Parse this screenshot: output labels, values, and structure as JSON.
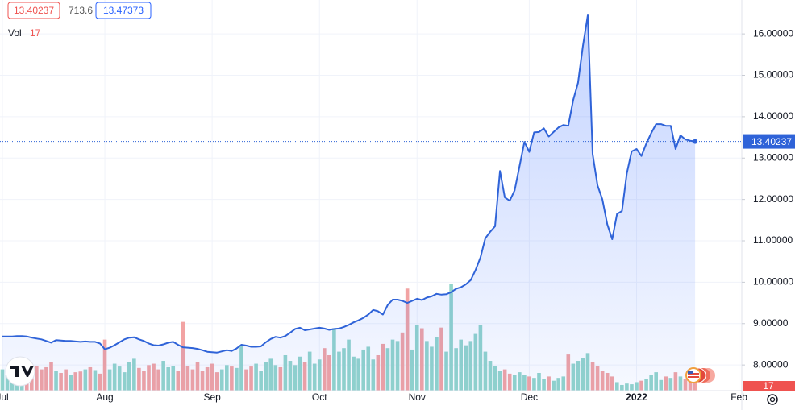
{
  "chart_data": {
    "type": "line",
    "legend": {
      "indicator_values": [
        713.6,
        13.47373
      ],
      "volume_label": "Vol"
    },
    "categories": [
      "Jul",
      null,
      null,
      null,
      null,
      null,
      null,
      null,
      null,
      null,
      null,
      null,
      null,
      null,
      null,
      null,
      null,
      null,
      null,
      null,
      null,
      "Aug",
      null,
      null,
      null,
      null,
      null,
      null,
      null,
      null,
      null,
      null,
      null,
      null,
      null,
      null,
      null,
      null,
      null,
      null,
      null,
      null,
      null,
      "Sep",
      null,
      null,
      null,
      null,
      null,
      null,
      null,
      null,
      null,
      null,
      null,
      null,
      null,
      null,
      null,
      null,
      null,
      null,
      null,
      null,
      null,
      "Oct",
      null,
      null,
      null,
      null,
      null,
      null,
      null,
      null,
      null,
      null,
      null,
      null,
      null,
      null,
      null,
      null,
      null,
      null,
      null,
      "Nov",
      null,
      null,
      null,
      null,
      null,
      null,
      null,
      null,
      null,
      null,
      null,
      null,
      null,
      null,
      null,
      null,
      null,
      null,
      null,
      null,
      null,
      null,
      "Dec",
      null,
      null,
      null,
      null,
      null,
      null,
      null,
      null,
      null,
      null,
      null,
      null,
      null,
      null,
      null,
      null,
      null,
      null,
      null,
      null,
      null,
      "2022",
      null,
      null,
      null,
      null,
      null,
      null,
      null,
      null,
      null,
      null,
      null,
      null,
      null,
      null,
      null,
      null,
      null,
      null,
      null,
      null,
      "Feb"
    ],
    "series": [
      {
        "color": "#2f63d8",
        "values": [
          8.69,
          8.69,
          8.69,
          8.7,
          8.7,
          8.69,
          8.66,
          8.64,
          8.62,
          8.58,
          8.54,
          8.6,
          8.59,
          8.58,
          8.58,
          8.57,
          8.56,
          8.57,
          8.56,
          8.56,
          8.52,
          8.38,
          8.42,
          8.48,
          8.55,
          8.62,
          8.66,
          8.67,
          8.62,
          8.58,
          8.52,
          8.48,
          8.47,
          8.5,
          8.54,
          8.56,
          8.49,
          8.43,
          8.42,
          8.41,
          8.39,
          8.36,
          8.32,
          8.31,
          8.3,
          8.33,
          8.36,
          8.34,
          8.4,
          8.49,
          8.47,
          8.44,
          8.44,
          8.45,
          8.55,
          8.63,
          8.68,
          8.66,
          8.7,
          8.78,
          8.87,
          8.9,
          8.84,
          8.86,
          8.88,
          8.9,
          8.88,
          8.85,
          8.87,
          8.88,
          8.92,
          8.97,
          9.03,
          9.08,
          9.14,
          9.22,
          9.33,
          9.3,
          9.22,
          9.45,
          9.58,
          9.58,
          9.55,
          9.5,
          9.55,
          9.6,
          9.57,
          9.63,
          9.66,
          9.72,
          9.7,
          9.71,
          9.76,
          9.84,
          9.88,
          9.95,
          10.05,
          10.3,
          10.6,
          11.06,
          11.22,
          11.35,
          12.69,
          12.05,
          11.97,
          12.22,
          12.8,
          13.39,
          13.15,
          13.62,
          13.63,
          13.72,
          13.52,
          13.63,
          13.74,
          13.8,
          13.78,
          14.4,
          14.82,
          15.7,
          16.45,
          13.1,
          12.34,
          12.0,
          11.4,
          11.04,
          11.65,
          11.72,
          12.63,
          13.16,
          13.22,
          13.05,
          13.35,
          13.6,
          13.82,
          13.82,
          13.78,
          13.78,
          13.22,
          13.55,
          13.45,
          13.42,
          13.40237,
          null,
          null,
          null,
          null,
          null,
          null,
          null,
          null,
          null
        ]
      }
    ],
    "volume": {
      "up_color": "#93d5cb",
      "down_color": "#f2a3a3",
      "values": [
        30,
        22,
        25,
        28,
        20,
        24,
        32,
        35,
        30,
        33,
        40,
        28,
        25,
        30,
        22,
        26,
        27,
        30,
        33,
        29,
        24,
        72,
        30,
        38,
        34,
        26,
        40,
        45,
        32,
        28,
        36,
        38,
        30,
        42,
        33,
        35,
        28,
        97,
        35,
        30,
        40,
        28,
        33,
        38,
        26,
        30,
        36,
        34,
        32,
        63,
        30,
        34,
        38,
        28,
        40,
        45,
        36,
        33,
        50,
        42,
        36,
        48,
        40,
        55,
        38,
        44,
        60,
        50,
        88,
        55,
        60,
        72,
        48,
        45,
        58,
        62,
        44,
        50,
        66,
        60,
        72,
        70,
        82,
        144,
        58,
        93,
        88,
        70,
        62,
        75,
        89,
        55,
        150,
        60,
        72,
        64,
        70,
        80,
        93,
        55,
        42,
        35,
        28,
        30,
        24,
        22,
        26,
        22,
        20,
        18,
        25,
        16,
        20,
        14,
        18,
        20,
        51,
        38,
        42,
        46,
        53,
        40,
        35,
        28,
        25,
        20,
        12,
        8,
        10,
        9,
        12,
        14,
        16,
        22,
        26,
        15,
        20,
        18,
        26,
        20,
        17,
        15,
        17,
        null,
        null,
        null,
        null,
        null,
        null,
        null,
        null,
        null
      ]
    },
    "volume_ylim": [
      0,
      551
    ],
    "ylim": [
      7.38,
      16.82
    ],
    "yticks": [
      {
        "value": 8,
        "label": "8.00000"
      },
      {
        "value": 9,
        "label": "9.00000"
      },
      {
        "value": 10,
        "label": "10.00000"
      },
      {
        "value": 11,
        "label": "11.00000"
      },
      {
        "value": 12,
        "label": "12.00000"
      },
      {
        "value": 13,
        "label": "13.00000"
      },
      {
        "value": 14,
        "label": "14.00000"
      },
      {
        "value": 15,
        "label": "15.00000"
      },
      {
        "value": 16,
        "label": "16.00000"
      }
    ],
    "grid": true
  }
}
